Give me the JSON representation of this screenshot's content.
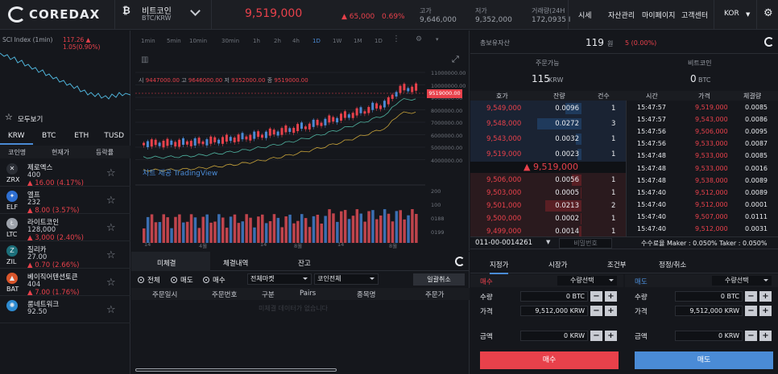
{
  "header": {
    "brand": "COREDAX",
    "coin_name": "비트코인",
    "pair": "BTC/KRW",
    "price": "9,519,000",
    "change_abs": "▲ 65,000",
    "change_pct": "0.69%",
    "high_label": "고가",
    "high_value": "9,646,000",
    "low_label": "저가",
    "low_value": "9,352,000",
    "vol_label": "거래량(24H",
    "vol_value": "172,0935 I",
    "nav": [
      "시세",
      "자산관리",
      "마이페이지",
      "고객센터"
    ],
    "lang": "KOR",
    "colors": {
      "up": "#e8414b",
      "down": "#4a8bd6"
    }
  },
  "sci": {
    "label": "SCI Index (1min)",
    "value": "117.26",
    "change": "▲ 1.05(0.90%)"
  },
  "left": {
    "favorites": "모두보기",
    "tabs": [
      "KRW",
      "BTC",
      "ETH",
      "TUSD"
    ],
    "cols": [
      "코인명",
      "현재가",
      "등락률"
    ],
    "coins": [
      {
        "ticker": "ZRX",
        "name": "제로엑스",
        "price": "400",
        "change": "▲ 16.00  (4.17%)",
        "icon": "zrx-icon",
        "glyph": "✕",
        "color": "#2a2d34"
      },
      {
        "ticker": "ELF",
        "name": "엘프",
        "price": "232",
        "change": "▲ 8.00  (3.57%)",
        "icon": "elf-icon",
        "glyph": "✦",
        "color": "#2e6fd1"
      },
      {
        "ticker": "LTC",
        "name": "라이트코인",
        "price": "128,000",
        "change": "▲ 3,000  (2.40%)",
        "icon": "ltc-icon",
        "glyph": "Ł",
        "color": "#9ea3ab"
      },
      {
        "ticker": "ZIL",
        "name": "질리카",
        "price": "27.00",
        "change": "▲ 0.70  (2.66%)",
        "icon": "zil-icon",
        "glyph": "Z",
        "color": "#1c6f7a"
      },
      {
        "ticker": "BAT",
        "name": "베이직어텐션토큰",
        "price": "404",
        "change": "▲ 7.00  (1.76%)",
        "icon": "bat-icon",
        "glyph": "▲",
        "color": "#d9552b"
      },
      {
        "ticker": "",
        "name": "룸네트워크",
        "price": "92.50",
        "change": "",
        "icon": "loom-icon",
        "glyph": "✺",
        "color": "#2e8bd1"
      }
    ]
  },
  "chart": {
    "timeframes": [
      "1min",
      "5min",
      "10min",
      "30min",
      "1h",
      "2h",
      "4h",
      "1D",
      "1W",
      "1M",
      "1D"
    ],
    "active_tf": "1D",
    "ohlc": {
      "o_label": "시",
      "o": "9447000.00",
      "h_label": "고",
      "h": "9646000.00",
      "l_label": "저",
      "l": "9352000.00",
      "c_label": "종",
      "c": "9519000.00"
    },
    "price_tag": "9519000.00",
    "watermark": "차트 제공 TradingView",
    "ticks_x": [
      "14",
      "4월",
      "14",
      "8월",
      "14",
      "8월"
    ],
    "ticks_y": [
      "11000000.00",
      "10000000.00",
      "9000000.00",
      "8000000.00",
      "7000000.00",
      "6000000.00",
      "5000000.00",
      "4000000.00"
    ],
    "vol_ticks": [
      "200",
      "100",
      "0188",
      "0199"
    ]
  },
  "orders": {
    "tabs": [
      "미체결",
      "체결내역",
      "잔고"
    ],
    "radios": [
      "전체",
      "매도",
      "매수"
    ],
    "market_select": "전체마켓",
    "coin_select": "코인전체",
    "cancel_all": "일괄취소",
    "cols": [
      "주문일시",
      "주문번호",
      "구분",
      "Pairs",
      "종목명",
      "주문가"
    ],
    "empty": "미체결 데이터가 없습니다"
  },
  "assets": {
    "total_label": "총보유자산",
    "total_value": "119",
    "unit": "원",
    "total_pct": "5 (0.00%)",
    "avail_label": "주문가능",
    "avail_value": "115",
    "avail_unit": "KRW",
    "btc_label": "비트코인",
    "btc_value": "0",
    "btc_unit": "BTC"
  },
  "orderbook": {
    "cols": [
      "호가",
      "잔량",
      "건수"
    ],
    "rows": [
      {
        "price": "9,549,000",
        "qty": "0.0096",
        "count": "1",
        "fill": 0.35
      },
      {
        "price": "9,548,000",
        "qty": "0.0272",
        "count": "3",
        "fill": 0.95
      },
      {
        "price": "9,543,000",
        "qty": "0.0032",
        "count": "1",
        "fill": 0.12
      },
      {
        "price": "9,519,000",
        "qty": "0.0023",
        "count": "1",
        "fill": 0.08
      }
    ],
    "mid": "▲ 9,519,000",
    "bids": [
      {
        "price": "9,506,000",
        "qty": "0.0056",
        "count": "1",
        "fill": 0.2
      },
      {
        "price": "9,503,000",
        "qty": "0.0005",
        "count": "1",
        "fill": 0.02
      },
      {
        "price": "9,501,000",
        "qty": "0.0213",
        "count": "2",
        "fill": 0.78
      },
      {
        "price": "9,500,000",
        "qty": "0.0002",
        "count": "1",
        "fill": 0.01
      },
      {
        "price": "9,499,000",
        "qty": "0.0014",
        "count": "1",
        "fill": 0.05
      }
    ]
  },
  "trades": {
    "cols": [
      "시간",
      "가격",
      "체결량"
    ],
    "rows": [
      {
        "time": "15:47:57",
        "price": "9,519,000",
        "qty": "0.0085"
      },
      {
        "time": "15:47:57",
        "price": "9,543,000",
        "qty": "0.0086"
      },
      {
        "time": "15:47:56",
        "price": "9,506,000",
        "qty": "0.0095"
      },
      {
        "time": "15:47:56",
        "price": "9,533,000",
        "qty": "0.0087"
      },
      {
        "time": "15:47:48",
        "price": "9,533,000",
        "qty": "0.0085"
      },
      {
        "time": "15:47:48",
        "price": "9,533,000",
        "qty": "0.0016"
      },
      {
        "time": "15:47:48",
        "price": "9,538,000",
        "qty": "0.0089"
      },
      {
        "time": "15:47:40",
        "price": "9,512,000",
        "qty": "0.0089"
      },
      {
        "time": "15:47:40",
        "price": "9,512,000",
        "qty": "0.0001"
      },
      {
        "time": "15:47:40",
        "price": "9,507,000",
        "qty": "0.0111"
      },
      {
        "time": "15:47:40",
        "price": "9,512,000",
        "qty": "0.0031"
      }
    ]
  },
  "account": {
    "id": "011-00-0014261",
    "pwd_placeholder": "비밀번호",
    "fee": "수수료율 Maker : 0.050% Taker : 0.050%"
  },
  "form": {
    "tabs": [
      "지정가",
      "시장가",
      "조건부",
      "정정/취소"
    ],
    "buy": {
      "title": "매수",
      "select": "수량선택",
      "qty_label": "수량",
      "qty": "0",
      "qty_unit": "BTC",
      "price_label": "가격",
      "price": "9,512,000",
      "price_unit": "KRW",
      "amt_label": "금액",
      "amt": "0",
      "amt_unit": "KRW",
      "button": "매수"
    },
    "sell": {
      "title": "매도",
      "select": "수량선택",
      "qty_label": "수량",
      "qty": "0",
      "qty_unit": "BTC",
      "price_label": "가격",
      "price": "9,512,000",
      "price_unit": "KRW",
      "amt_label": "금액",
      "amt": "0",
      "amt_unit": "KRW",
      "button": "매도"
    }
  }
}
